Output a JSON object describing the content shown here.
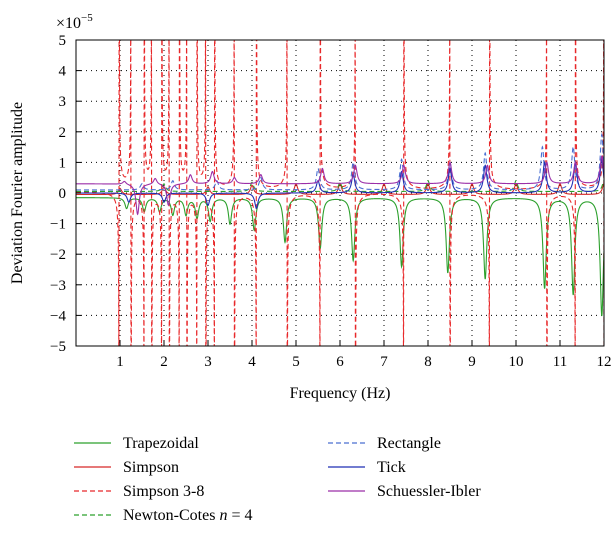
{
  "chart_data": {
    "type": "line",
    "xlabel": "Frequency (Hz)",
    "ylabel": "Deviation Fourier amplitude",
    "y_multiplier": "×10",
    "y_multiplier_exp": "−5",
    "xlim": [
      0,
      12
    ],
    "ylim": [
      -5,
      5
    ],
    "xticks": [
      1,
      2,
      3,
      4,
      5,
      6,
      7,
      8,
      9,
      10,
      11,
      12
    ],
    "yticks": [
      5,
      4,
      3,
      2,
      1,
      0,
      -1,
      -2,
      -3,
      -4,
      -5
    ],
    "ytick_labels": [
      "5",
      "4",
      "3",
      "2",
      "1",
      "0",
      "−1",
      "−2",
      "−3",
      "−4",
      "−5"
    ],
    "grid": true,
    "legend_position": "below",
    "series": [
      {
        "name": "Trapezoidal",
        "color": "#2ca02c",
        "style": "solid",
        "baseline": -0.15,
        "peaks": [
          [
            1.15,
            -0.5
          ],
          [
            1.55,
            -0.6
          ],
          [
            1.9,
            -0.6
          ],
          [
            2.2,
            -0.7
          ],
          [
            2.5,
            -0.7
          ],
          [
            2.75,
            -0.8
          ],
          [
            3.05,
            -0.9
          ],
          [
            3.5,
            -1.0
          ],
          [
            4.05,
            -1.2
          ],
          [
            4.75,
            -1.6
          ],
          [
            5.55,
            -1.8
          ],
          [
            6.3,
            -2.2
          ],
          [
            7.4,
            -2.4
          ],
          [
            8.45,
            -2.6
          ],
          [
            9.3,
            -2.8
          ],
          [
            10.65,
            -3.1
          ],
          [
            11.3,
            -3.3
          ],
          [
            11.95,
            -4.0
          ]
        ]
      },
      {
        "name": "Simpson",
        "color": "#d62728",
        "style": "solid",
        "baseline": -0.05,
        "peaks": [
          [
            1.0,
            0.15
          ],
          [
            2.0,
            0.2
          ],
          [
            3.0,
            0.2
          ],
          [
            4.0,
            0.25
          ],
          [
            5.0,
            0.3
          ],
          [
            6.0,
            0.3
          ],
          [
            7.0,
            0.3
          ],
          [
            8.0,
            0.3
          ],
          [
            9.0,
            0.3
          ],
          [
            10.0,
            0.3
          ],
          [
            11.0,
            0.3
          ],
          [
            12.0,
            0.3
          ]
        ]
      },
      {
        "name": "Simpson 3-8",
        "color": "#e8282a",
        "style": "dashed",
        "poles": [
          0.98,
          1.25,
          1.55,
          1.72,
          1.95,
          2.12,
          2.35,
          2.52,
          2.75,
          2.95,
          3.15,
          3.6,
          4.1,
          4.8,
          5.55,
          6.35,
          7.45,
          8.5,
          9.4,
          10.7,
          11.35,
          12.0
        ]
      },
      {
        "name": "Newton-Cotes",
        "name_suffix": " = 4",
        "name_italic": "n",
        "color": "#2ca02c",
        "style": "dashed",
        "baseline": 0.05,
        "peaks": [
          [
            2.0,
            0.3
          ],
          [
            4.0,
            0.35
          ],
          [
            6.0,
            0.35
          ],
          [
            8.0,
            0.4
          ],
          [
            10.0,
            0.4
          ],
          [
            12.0,
            0.4
          ]
        ]
      },
      {
        "name": "Rectangle",
        "color": "#4a6fd1",
        "style": "dashed",
        "baseline": 0.1,
        "peaks": [
          [
            1.5,
            0.3
          ],
          [
            2.2,
            0.4
          ],
          [
            3.2,
            0.4
          ],
          [
            4.2,
            0.5
          ],
          [
            5.5,
            0.8
          ],
          [
            6.3,
            1.0
          ],
          [
            7.4,
            1.1
          ],
          [
            8.5,
            1.0
          ],
          [
            9.3,
            1.3
          ],
          [
            10.6,
            1.5
          ],
          [
            11.3,
            1.5
          ],
          [
            11.95,
            1.9
          ]
        ]
      },
      {
        "name": "Tick",
        "color": "#1f2fb4",
        "style": "solid",
        "baseline": 0.0,
        "peaks": [
          [
            1.2,
            -0.3
          ],
          [
            2.0,
            -0.3
          ],
          [
            3.0,
            -0.4
          ],
          [
            4.1,
            -0.5
          ],
          [
            5.5,
            0.4
          ],
          [
            6.3,
            0.6
          ],
          [
            7.4,
            0.7
          ],
          [
            8.5,
            0.8
          ],
          [
            9.3,
            0.9
          ],
          [
            10.65,
            1.0
          ],
          [
            11.35,
            1.0
          ],
          [
            11.95,
            1.1
          ]
        ]
      },
      {
        "name": "Schuessler-Ibler",
        "color": "#9b2fa8",
        "style": "solid",
        "baseline": 0.3,
        "peaks": [
          [
            1.1,
            0.4
          ],
          [
            1.4,
            -0.7
          ],
          [
            1.8,
            0.5
          ],
          [
            2.1,
            -0.4
          ],
          [
            2.6,
            0.6
          ],
          [
            3.1,
            0.7
          ],
          [
            3.6,
            0.5
          ],
          [
            4.2,
            0.6
          ],
          [
            5.6,
            0.8
          ],
          [
            6.35,
            0.9
          ],
          [
            7.45,
            0.9
          ],
          [
            8.5,
            1.0
          ],
          [
            9.35,
            0.9
          ],
          [
            10.7,
            1.0
          ],
          [
            11.35,
            1.0
          ],
          [
            11.95,
            1.2
          ]
        ]
      }
    ]
  }
}
